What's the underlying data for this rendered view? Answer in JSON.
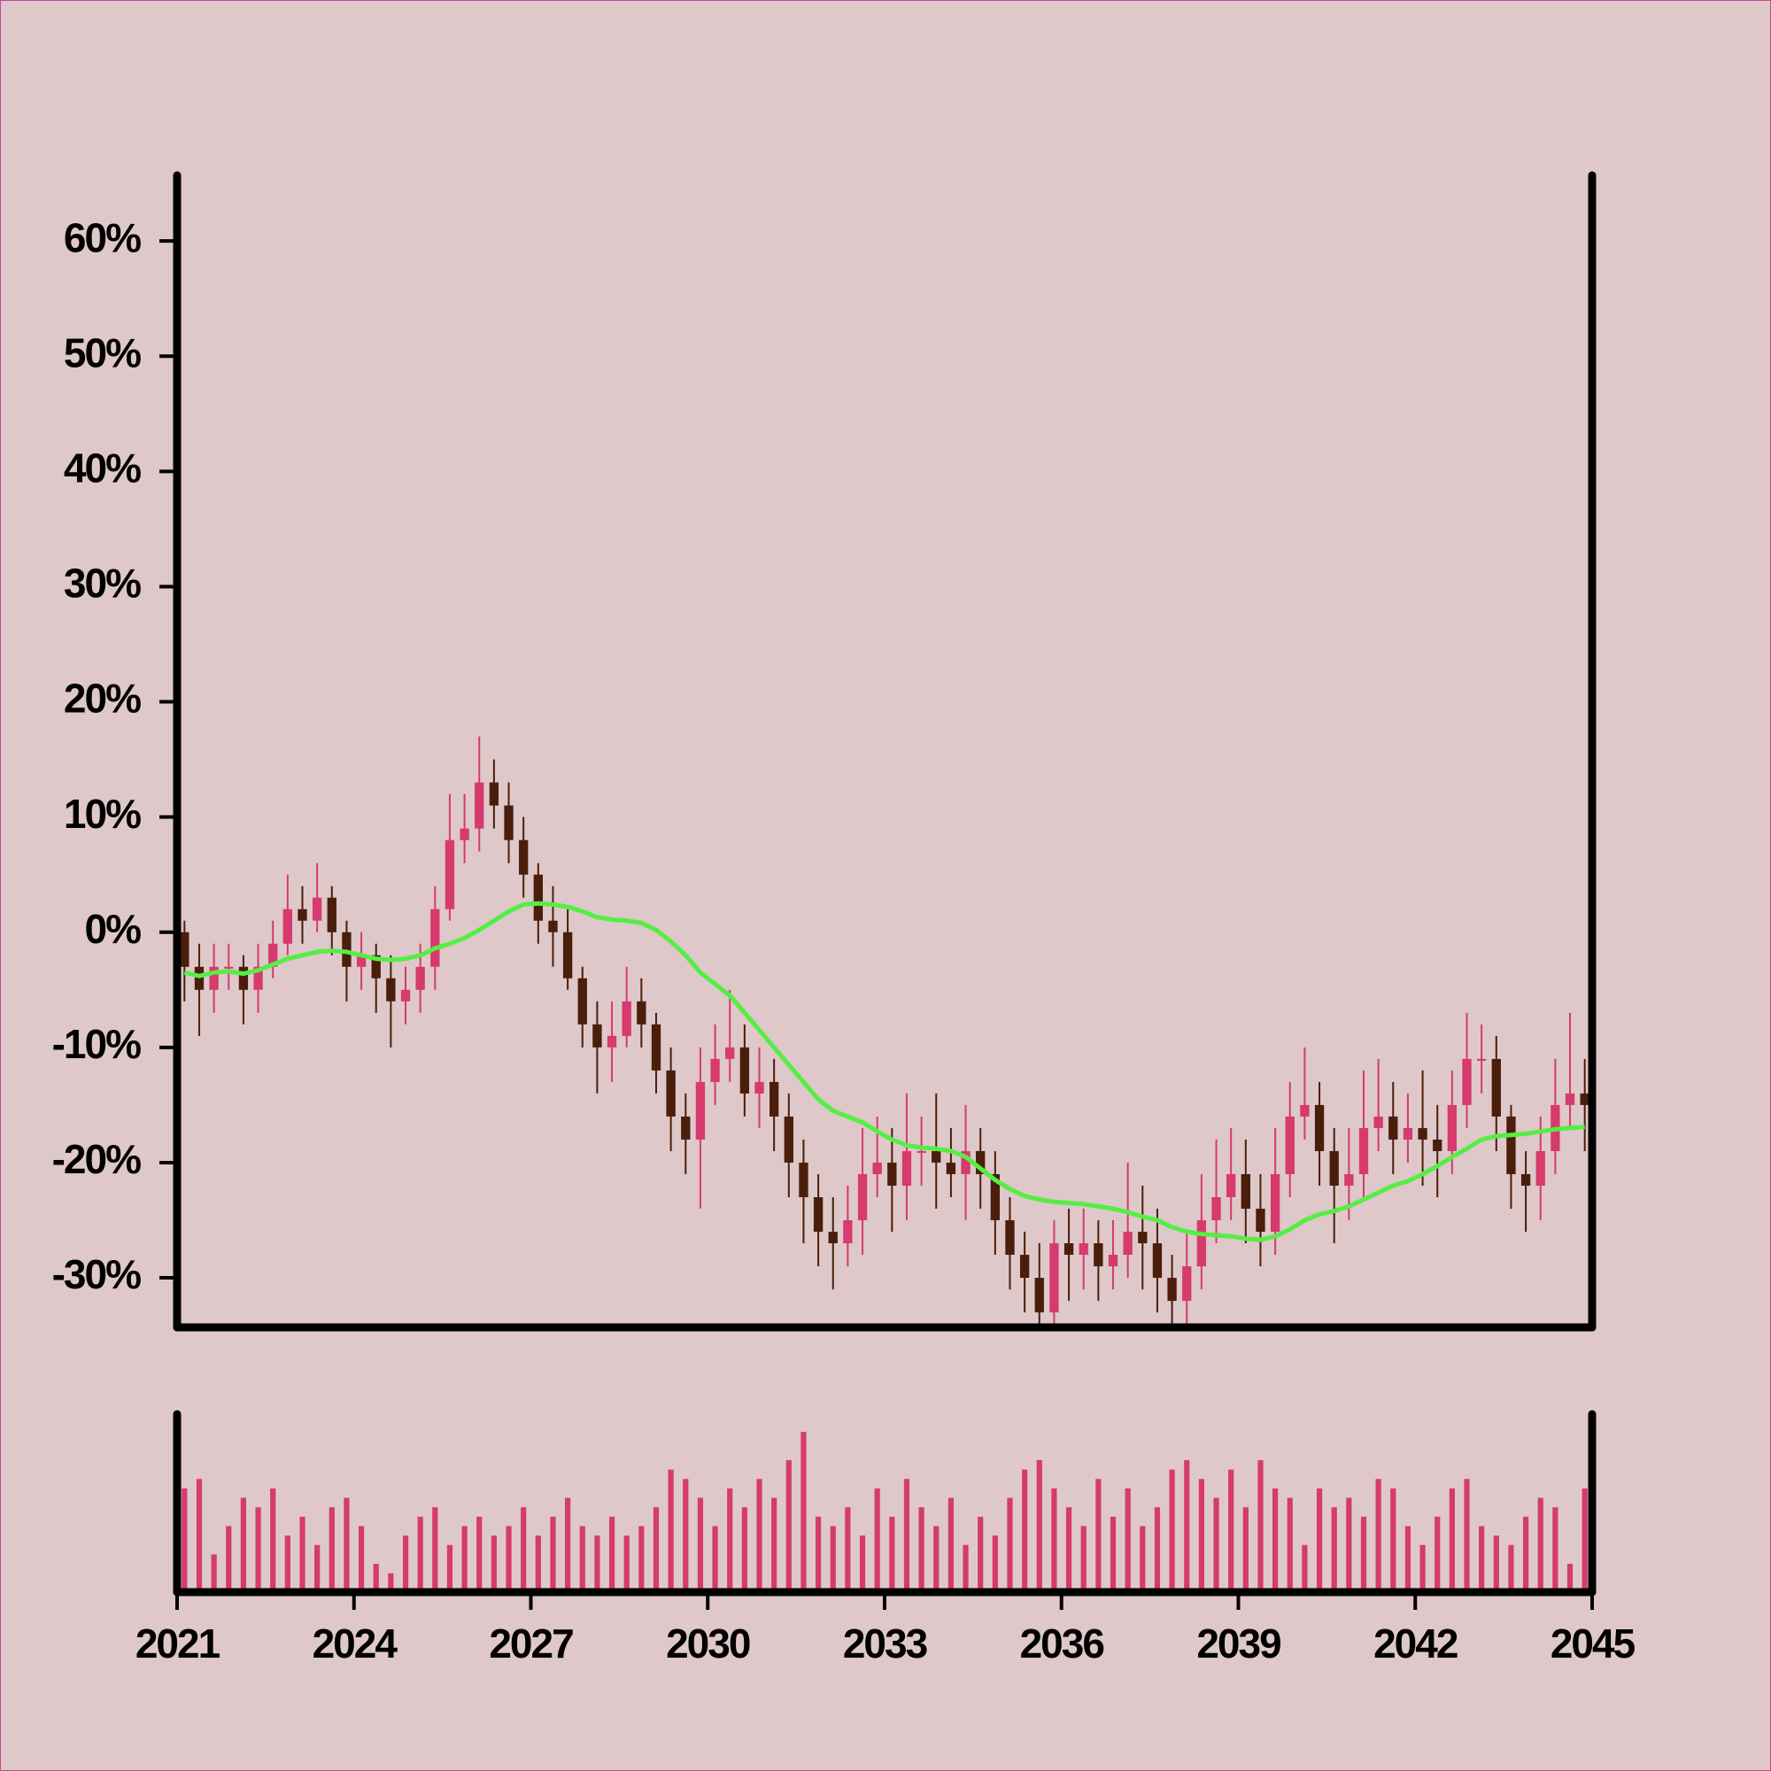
{
  "chart_data": {
    "type": "candlestick",
    "xlim": [
      2021,
      2045
    ],
    "xticks": [
      2021,
      2024,
      2027,
      2030,
      2033,
      2036,
      2039,
      2042,
      2045
    ],
    "ylim": [
      -34.3,
      65.7
    ],
    "yticks": [
      {
        "value": -30,
        "label": "-30%"
      },
      {
        "value": -20,
        "label": "-20%"
      },
      {
        "value": -10,
        "label": "-10%"
      },
      {
        "value": 0,
        "label": "0%"
      },
      {
        "value": 10,
        "label": "10%"
      },
      {
        "value": 20,
        "label": "20%"
      },
      {
        "value": 30,
        "label": "30%"
      },
      {
        "value": 40,
        "label": "40%"
      },
      {
        "value": 50,
        "label": "50%"
      },
      {
        "value": 60,
        "label": "60%"
      }
    ],
    "up_color": "#d63a6e",
    "down_color": "#4a1e0a",
    "ma_color": "#55ee44",
    "volume_color": "#d63a6e",
    "x": [
      2021.125,
      2021.375,
      2021.625,
      2021.875,
      2022.125,
      2022.375,
      2022.625,
      2022.875,
      2023.125,
      2023.375,
      2023.625,
      2023.875,
      2024.125,
      2024.375,
      2024.625,
      2024.875,
      2025.125,
      2025.375,
      2025.625,
      2025.875,
      2026.125,
      2026.375,
      2026.625,
      2026.875,
      2027.125,
      2027.375,
      2027.625,
      2027.875,
      2028.125,
      2028.375,
      2028.625,
      2028.875,
      2029.125,
      2029.375,
      2029.625,
      2029.875,
      2030.125,
      2030.375,
      2030.625,
      2030.875,
      2031.125,
      2031.375,
      2031.625,
      2031.875,
      2032.125,
      2032.375,
      2032.625,
      2032.875,
      2033.125,
      2033.375,
      2033.625,
      2033.875,
      2034.125,
      2034.375,
      2034.625,
      2034.875,
      2035.125,
      2035.375,
      2035.625,
      2035.875,
      2036.125,
      2036.375,
      2036.625,
      2036.875,
      2037.125,
      2037.375,
      2037.625,
      2037.875,
      2038.125,
      2038.375,
      2038.625,
      2038.875,
      2039.125,
      2039.375,
      2039.625,
      2039.875,
      2040.125,
      2040.375,
      2040.625,
      2040.875,
      2041.125,
      2041.375,
      2041.625,
      2041.875,
      2042.125,
      2042.375,
      2042.625,
      2042.875,
      2043.125,
      2043.375,
      2043.625,
      2043.875,
      2044.125,
      2044.375,
      2044.625,
      2044.875
    ],
    "open": [
      0,
      -3,
      -5,
      -3,
      -3,
      -5,
      -3,
      -1,
      2,
      1,
      3,
      0,
      -3,
      -2,
      -4,
      -6,
      -5,
      -3,
      2,
      8,
      9,
      13,
      11,
      8,
      5,
      1,
      0,
      -4,
      -8,
      -10,
      -9,
      -6,
      -8,
      -12,
      -16,
      -18,
      -13,
      -11,
      -10,
      -14,
      -13,
      -16,
      -20,
      -23,
      -26,
      -27,
      -25,
      -21,
      -20,
      -22,
      -19,
      -19,
      -20,
      -21,
      -19,
      -21,
      -25,
      -28,
      -30,
      -33,
      -27,
      -28,
      -27,
      -29,
      -28,
      -26,
      -27,
      -30,
      -32,
      -29,
      -25,
      -23,
      -21,
      -24,
      -26,
      -21,
      -16,
      -15,
      -19,
      -22,
      -21,
      -17,
      -16,
      -18,
      -17,
      -18,
      -19,
      -15,
      -11,
      -11,
      -16,
      -21,
      -22,
      -19,
      -15,
      -14
    ],
    "high": [
      1,
      -1,
      -1,
      -1,
      -2,
      -1,
      1,
      5,
      4,
      6,
      4,
      1,
      0,
      -1,
      -2,
      -3,
      -1,
      4,
      12,
      12,
      17,
      15,
      13,
      10,
      6,
      4,
      2,
      -3,
      -6,
      -6,
      -3,
      -4,
      -7,
      -10,
      -14,
      -10,
      -8,
      -5,
      -8,
      -10,
      -11,
      -14,
      -18,
      -21,
      -23,
      -22,
      -17,
      -16,
      -17,
      -14,
      -16,
      -14,
      -17,
      -15,
      -17,
      -19,
      -23,
      -26,
      -27,
      -25,
      -24,
      -24,
      -25,
      -25,
      -20,
      -22,
      -24,
      -28,
      -26,
      -21,
      -18,
      -17,
      -18,
      -21,
      -17,
      -13,
      -10,
      -13,
      -17,
      -17,
      -12,
      -11,
      -13,
      -14,
      -12,
      -15,
      -12,
      -7,
      -8,
      -9,
      -15,
      -19,
      -16,
      -11,
      -7,
      -11
    ],
    "low": [
      -6,
      -9,
      -7,
      -5,
      -8,
      -7,
      -4,
      -2,
      -1,
      0,
      -2,
      -6,
      -5,
      -7,
      -10,
      -8,
      -7,
      -5,
      1,
      6,
      7,
      9,
      6,
      3,
      -1,
      -3,
      -5,
      -10,
      -14,
      -13,
      -10,
      -10,
      -14,
      -19,
      -21,
      -24,
      -15,
      -13,
      -16,
      -17,
      -19,
      -23,
      -27,
      -29,
      -31,
      -29,
      -28,
      -23,
      -26,
      -25,
      -22,
      -24,
      -23,
      -25,
      -24,
      -28,
      -31,
      -33,
      -34,
      -34,
      -32,
      -31,
      -32,
      -31,
      -30,
      -31,
      -33,
      -34,
      -34,
      -31,
      -27,
      -25,
      -27,
      -29,
      -28,
      -23,
      -18,
      -22,
      -27,
      -25,
      -23,
      -19,
      -21,
      -20,
      -22,
      -23,
      -21,
      -17,
      -14,
      -19,
      -24,
      -26,
      -25,
      -21,
      -17,
      -19
    ],
    "close": [
      -3,
      -5,
      -3,
      -3,
      -5,
      -3,
      -1,
      2,
      1,
      3,
      0,
      -3,
      -2,
      -4,
      -6,
      -5,
      -3,
      2,
      8,
      9,
      13,
      11,
      8,
      5,
      1,
      0,
      -4,
      -8,
      -10,
      -9,
      -6,
      -8,
      -12,
      -16,
      -18,
      -13,
      -11,
      -10,
      -14,
      -13,
      -16,
      -20,
      -23,
      -26,
      -27,
      -25,
      -21,
      -20,
      -22,
      -19,
      -19,
      -20,
      -21,
      -19,
      -21,
      -25,
      -28,
      -30,
      -33,
      -27,
      -28,
      -27,
      -29,
      -28,
      -26,
      -27,
      -30,
      -32,
      -29,
      -25,
      -23,
      -21,
      -24,
      -26,
      -21,
      -16,
      -15,
      -19,
      -22,
      -21,
      -17,
      -16,
      -18,
      -17,
      -18,
      -19,
      -15,
      -11,
      -11,
      -16,
      -21,
      -22,
      -19,
      -15,
      -14,
      -15
    ],
    "ma": [
      -3.5,
      -3.8,
      -3.5,
      -3.4,
      -3.6,
      -3.3,
      -2.8,
      -2.3,
      -2.0,
      -1.7,
      -1.6,
      -1.7,
      -2.0,
      -2.3,
      -2.4,
      -2.3,
      -2.0,
      -1.4,
      -1.0,
      -0.5,
      0.2,
      1.0,
      1.8,
      2.4,
      2.5,
      2.4,
      2.2,
      1.8,
      1.3,
      1.1,
      1.0,
      0.8,
      0.2,
      -0.8,
      -2.0,
      -3.5,
      -4.5,
      -5.5,
      -7.0,
      -8.5,
      -10.0,
      -11.5,
      -13.0,
      -14.5,
      -15.5,
      -16.0,
      -16.5,
      -17.3,
      -18.0,
      -18.5,
      -18.7,
      -18.8,
      -19.0,
      -19.5,
      -20.5,
      -21.5,
      -22.3,
      -22.9,
      -23.2,
      -23.4,
      -23.5,
      -23.6,
      -23.8,
      -24.0,
      -24.3,
      -24.7,
      -25.0,
      -25.6,
      -26.0,
      -26.2,
      -26.3,
      -26.4,
      -26.6,
      -26.7,
      -26.4,
      -25.8,
      -25.0,
      -24.5,
      -24.2,
      -23.8,
      -23.2,
      -22.6,
      -22.0,
      -21.6,
      -21.0,
      -20.3,
      -19.5,
      -18.8,
      -18.0,
      -17.7,
      -17.6,
      -17.5,
      -17.3,
      -17.1,
      -17.0,
      -16.9
    ],
    "volume": [
      55,
      60,
      20,
      35,
      50,
      45,
      55,
      30,
      40,
      25,
      45,
      50,
      35,
      15,
      10,
      30,
      40,
      45,
      25,
      35,
      40,
      30,
      35,
      45,
      30,
      40,
      50,
      35,
      30,
      40,
      30,
      35,
      45,
      65,
      60,
      50,
      35,
      55,
      45,
      60,
      50,
      70,
      85,
      40,
      35,
      45,
      30,
      55,
      40,
      60,
      45,
      35,
      50,
      25,
      40,
      30,
      50,
      65,
      70,
      55,
      45,
      35,
      60,
      40,
      55,
      35,
      45,
      65,
      70,
      60,
      50,
      65,
      45,
      70,
      55,
      50,
      25,
      55,
      45,
      50,
      40,
      60,
      55,
      35,
      25,
      40,
      55,
      60,
      35,
      30,
      25,
      40,
      50,
      45,
      15,
      55
    ]
  }
}
